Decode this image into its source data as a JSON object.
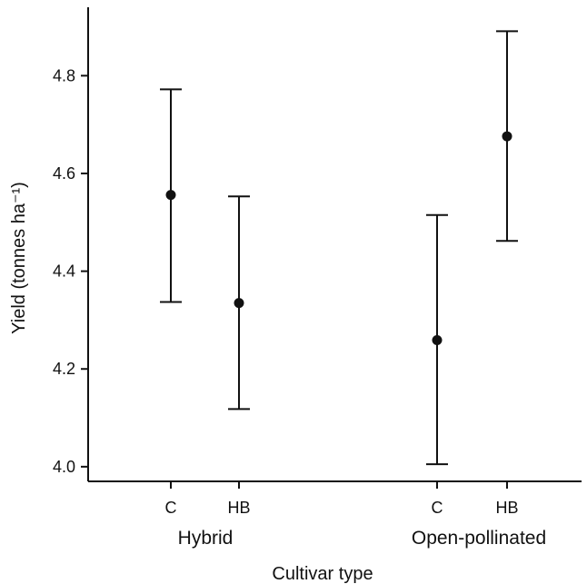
{
  "chart_data": {
    "type": "scatter",
    "title": "",
    "xlabel": "Cultivar type",
    "ylabel": "Yield (tonnes ha⁻¹)",
    "ylim": [
      3.97,
      4.94
    ],
    "yticks": [
      "4.0",
      "4.2",
      "4.4",
      "4.6",
      "4.8"
    ],
    "groups": [
      {
        "name": "Hybrid",
        "categories": [
          "C",
          "HB"
        ]
      },
      {
        "name": "Open-pollinated",
        "categories": [
          "C",
          "HB"
        ]
      }
    ],
    "points": [
      {
        "group": "Hybrid",
        "category": "C",
        "mean": 4.556,
        "lower": 4.337,
        "upper": 4.772
      },
      {
        "group": "Hybrid",
        "category": "HB",
        "mean": 4.335,
        "lower": 4.118,
        "upper": 4.553
      },
      {
        "group": "Open-pollinated",
        "category": "C",
        "mean": 4.259,
        "lower": 4.005,
        "upper": 4.515
      },
      {
        "group": "Open-pollinated",
        "category": "HB",
        "mean": 4.676,
        "lower": 4.462,
        "upper": 4.891
      }
    ],
    "error_bars": true,
    "grid": false,
    "legend": "none"
  }
}
